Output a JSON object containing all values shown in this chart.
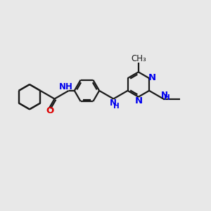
{
  "background_color": "#e8e8e8",
  "bond_color": "#1a1a1a",
  "n_color": "#0000ee",
  "o_color": "#dd0000",
  "lw": 1.6,
  "figsize": [
    3.0,
    3.0
  ],
  "dpi": 100,
  "xlim": [
    0,
    12
  ],
  "ylim": [
    0,
    10
  ]
}
